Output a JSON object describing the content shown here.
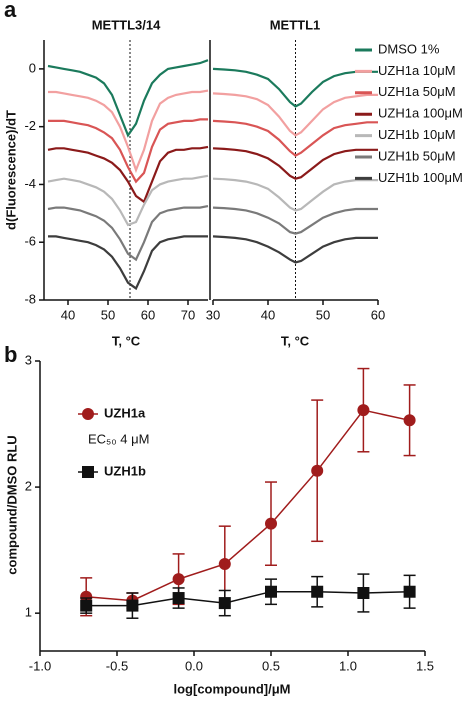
{
  "chart_data": [
    {
      "type": "line",
      "panel": "a",
      "title": "METTL3/14",
      "y_label": "d(Fluorescence)/dT",
      "x_label": "T, °C",
      "xlim": [
        34,
        75
      ],
      "xticks": [
        40,
        50,
        60,
        70
      ],
      "ylim": [
        -8,
        1
      ],
      "yticks": [
        0,
        -2,
        -4,
        -6,
        -8
      ],
      "vline": 55.5,
      "x": [
        35,
        37,
        39,
        41,
        43,
        45,
        47,
        49,
        51,
        53,
        55,
        57,
        59,
        61,
        63,
        65,
        67,
        69,
        71,
        73,
        75
      ],
      "series": [
        {
          "color": "#1b7a5c",
          "values": [
            0.1,
            0.05,
            0,
            -0.05,
            -0.1,
            -0.2,
            -0.3,
            -0.5,
            -0.9,
            -1.6,
            -2.3,
            -1.9,
            -1.1,
            -0.5,
            -0.2,
            0,
            0.05,
            0.1,
            0.15,
            0.2,
            0.3
          ]
        },
        {
          "color": "#f2a0a0",
          "values": [
            -0.8,
            -0.8,
            -0.85,
            -0.9,
            -0.95,
            -1.0,
            -1.1,
            -1.25,
            -1.5,
            -2.0,
            -2.7,
            -3.5,
            -2.8,
            -1.8,
            -1.2,
            -1.0,
            -0.9,
            -0.85,
            -0.8,
            -0.8,
            -0.75
          ]
        },
        {
          "color": "#d95555",
          "values": [
            -1.8,
            -1.8,
            -1.8,
            -1.85,
            -1.9,
            -1.95,
            -2.05,
            -2.2,
            -2.4,
            -2.8,
            -3.4,
            -3.9,
            -3.6,
            -2.7,
            -2.1,
            -1.9,
            -1.85,
            -1.8,
            -1.8,
            -1.75,
            -1.75
          ]
        },
        {
          "color": "#8b1a1a",
          "values": [
            -2.8,
            -2.75,
            -2.75,
            -2.8,
            -2.85,
            -2.9,
            -3.0,
            -3.1,
            -3.25,
            -3.5,
            -3.9,
            -4.4,
            -4.6,
            -3.9,
            -3.2,
            -2.9,
            -2.8,
            -2.8,
            -2.75,
            -2.75,
            -2.7
          ]
        },
        {
          "color": "#b8b8b8",
          "values": [
            -3.9,
            -3.85,
            -3.8,
            -3.85,
            -3.9,
            -4.0,
            -4.1,
            -4.25,
            -4.5,
            -4.9,
            -5.4,
            -5.3,
            -4.7,
            -4.2,
            -4.0,
            -3.9,
            -3.85,
            -3.8,
            -3.8,
            -3.75,
            -3.7
          ]
        },
        {
          "color": "#7a7a7a",
          "values": [
            -4.85,
            -4.8,
            -4.8,
            -4.85,
            -4.9,
            -5.0,
            -5.1,
            -5.25,
            -5.5,
            -5.9,
            -6.4,
            -6.6,
            -6.0,
            -5.3,
            -5.0,
            -4.9,
            -4.85,
            -4.8,
            -4.8,
            -4.8,
            -4.75
          ]
        },
        {
          "color": "#3d3d3d",
          "values": [
            -5.8,
            -5.8,
            -5.85,
            -5.9,
            -5.95,
            -6.0,
            -6.1,
            -6.25,
            -6.5,
            -6.9,
            -7.4,
            -7.6,
            -7.0,
            -6.3,
            -6.0,
            -5.9,
            -5.85,
            -5.8,
            -5.8,
            -5.8,
            -5.8
          ]
        }
      ]
    },
    {
      "type": "line",
      "title": "METTL1",
      "x_label": "T, °C",
      "xlim": [
        30,
        60
      ],
      "xticks": [
        30,
        40,
        50,
        60
      ],
      "ylim": [
        -8,
        1
      ],
      "vline": 45,
      "legend": true,
      "x": [
        30,
        32,
        34,
        36,
        38,
        40,
        42,
        44,
        45,
        46,
        48,
        50,
        52,
        54,
        56,
        58,
        60
      ],
      "series": [
        {
          "name": "DMSO 1%",
          "color": "#1b7a5c",
          "values": [
            0,
            -0.02,
            -0.05,
            -0.1,
            -0.2,
            -0.35,
            -0.7,
            -1.15,
            -1.3,
            -1.2,
            -0.8,
            -0.45,
            -0.25,
            -0.15,
            -0.1,
            -0.1,
            -0.1
          ]
        },
        {
          "name": "UZH1a 10μM",
          "color": "#f2a0a0",
          "values": [
            -0.85,
            -0.87,
            -0.9,
            -0.95,
            -1.05,
            -1.25,
            -1.65,
            -2.15,
            -2.3,
            -2.2,
            -1.8,
            -1.4,
            -1.15,
            -1.0,
            -0.95,
            -0.9,
            -0.9
          ]
        },
        {
          "name": "UZH1a 50μM",
          "color": "#d95555",
          "values": [
            -1.8,
            -1.82,
            -1.85,
            -1.9,
            -2.0,
            -2.15,
            -2.45,
            -2.85,
            -3.0,
            -2.9,
            -2.6,
            -2.3,
            -2.05,
            -1.95,
            -1.9,
            -1.85,
            -1.85
          ]
        },
        {
          "name": "UZH1a 100μM",
          "color": "#8b1a1a",
          "values": [
            -2.75,
            -2.77,
            -2.8,
            -2.85,
            -2.95,
            -3.1,
            -3.35,
            -3.7,
            -3.8,
            -3.75,
            -3.45,
            -3.15,
            -2.95,
            -2.85,
            -2.8,
            -2.8,
            -2.8
          ]
        },
        {
          "name": "UZH1b 10μM",
          "color": "#b8b8b8",
          "values": [
            -3.8,
            -3.82,
            -3.85,
            -3.9,
            -4.0,
            -4.15,
            -4.45,
            -4.8,
            -4.9,
            -4.85,
            -4.55,
            -4.25,
            -4.0,
            -3.9,
            -3.85,
            -3.85,
            -3.85
          ]
        },
        {
          "name": "UZH1b 50μM",
          "color": "#7a7a7a",
          "values": [
            -4.8,
            -4.82,
            -4.85,
            -4.9,
            -5.0,
            -5.15,
            -5.35,
            -5.65,
            -5.7,
            -5.65,
            -5.4,
            -5.15,
            -5.0,
            -4.9,
            -4.85,
            -4.85,
            -4.85
          ]
        },
        {
          "name": "UZH1b 100μM",
          "color": "#3d3d3d",
          "values": [
            -5.8,
            -5.82,
            -5.85,
            -5.9,
            -6.0,
            -6.15,
            -6.35,
            -6.6,
            -6.7,
            -6.65,
            -6.4,
            -6.15,
            -6.0,
            -5.9,
            -5.85,
            -5.85,
            -5.85
          ]
        }
      ]
    },
    {
      "type": "scatter",
      "panel": "b",
      "y_label": "compound/DMSO RLU",
      "x_label": "log[compound]/μM",
      "annotation": "EC₅₀ 4 μM",
      "xlim": [
        -1,
        1.5
      ],
      "xticks": [
        {
          "value": -1,
          "label": "-1.0"
        },
        -0.5,
        {
          "value": 0,
          "label": "0.0"
        },
        0.5,
        {
          "value": 1,
          "label": "1.0"
        },
        1.5
      ],
      "ylim": [
        0.7,
        3
      ],
      "yticks": [
        1,
        2,
        3
      ],
      "x": [
        -0.7,
        -0.4,
        -0.1,
        0.2,
        0.5,
        0.8,
        1.1,
        1.4
      ],
      "series": [
        {
          "name": "UZH1a",
          "color": "#a01c1c",
          "marker": "circle",
          "values": [
            1.13,
            1.1,
            1.27,
            1.39,
            1.71,
            2.13,
            2.61,
            2.53
          ],
          "errors": [
            0.15,
            0.06,
            0.2,
            0.3,
            0.33,
            0.56,
            0.33,
            0.28
          ]
        },
        {
          "name": "UZH1b",
          "color": "#111111",
          "marker": "square",
          "values": [
            1.06,
            1.06,
            1.12,
            1.08,
            1.17,
            1.17,
            1.16,
            1.17
          ],
          "errors": [
            0.06,
            0.1,
            0.08,
            0.1,
            0.1,
            0.12,
            0.15,
            0.13
          ]
        }
      ]
    }
  ]
}
